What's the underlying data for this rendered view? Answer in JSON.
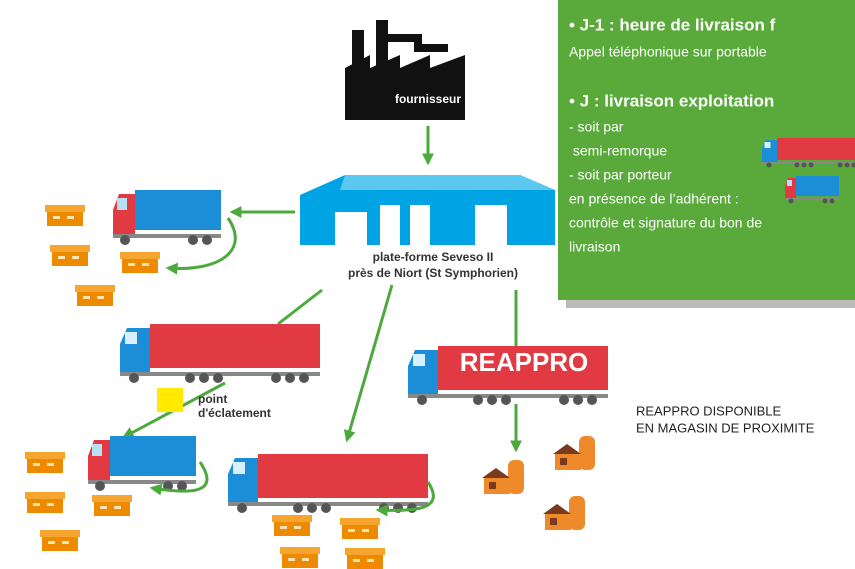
{
  "supplier": {
    "label": "fournisseur"
  },
  "platform": {
    "lines": [
      "plate-forme Seveso II",
      "près de Niort (St Symphorien)"
    ]
  },
  "burst_point": {
    "lines": [
      "point",
      "d'éclatement"
    ]
  },
  "reappro_truck": {
    "label": "REAPPRO"
  },
  "reappro_note": {
    "lines": [
      "REAPPRO DISPONIBLE",
      "EN MAGASIN DE PROXIMITE"
    ]
  },
  "info_box": {
    "items": [
      {
        "heading": "• J-1 : heure de livraison f",
        "lines": [
          "Appel téléphonique sur portable"
        ]
      },
      {
        "heading": "• J : livraison exploitation",
        "lines": [
          "- soit par",
          " semi-remorque",
          "- soit par porteur",
          "en présence de l’adhérent :",
          "contrôle et signature du bon de",
          "livraison"
        ]
      }
    ]
  }
}
